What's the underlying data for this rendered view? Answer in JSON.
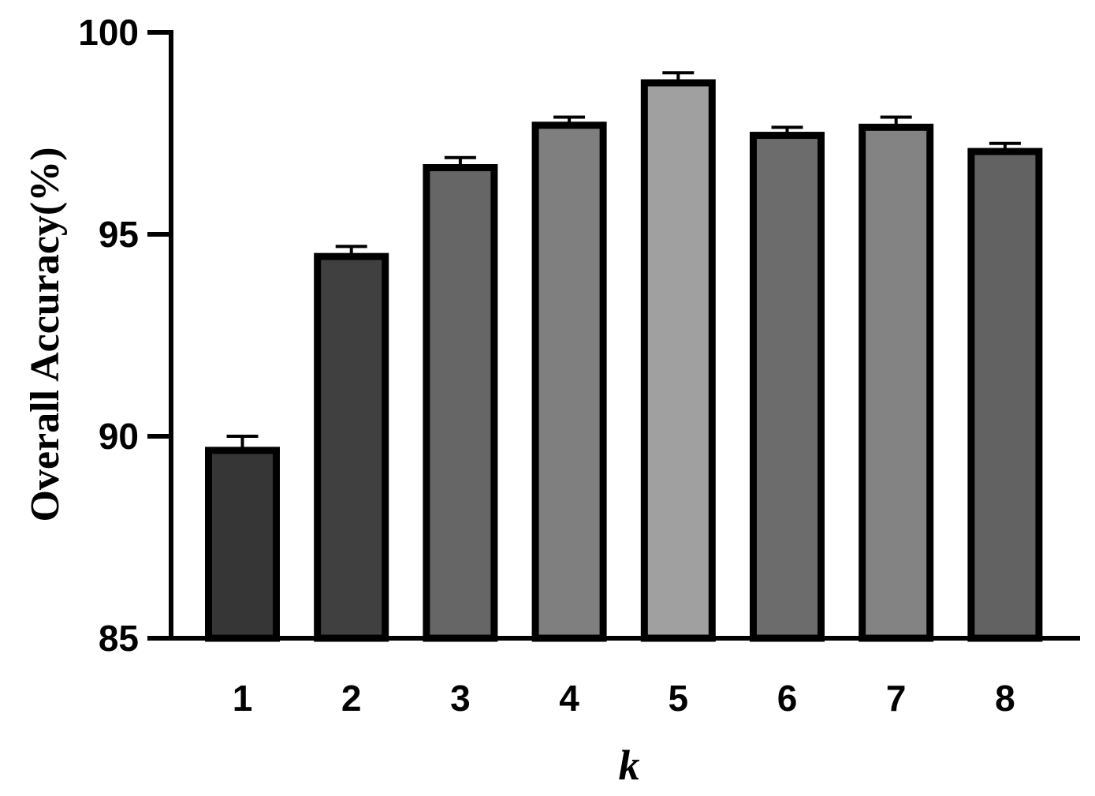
{
  "chart_data": {
    "type": "bar",
    "categories": [
      "1",
      "2",
      "3",
      "4",
      "5",
      "6",
      "7",
      "8"
    ],
    "values": [
      89.65,
      94.45,
      96.65,
      97.7,
      98.75,
      97.45,
      97.65,
      97.05
    ],
    "errors": [
      0.35,
      0.25,
      0.25,
      0.2,
      0.25,
      0.2,
      0.25,
      0.2
    ],
    "bar_colors": [
      "#363636",
      "#404040",
      "#666666",
      "#7f7f7f",
      "#a0a0a0",
      "#6c6c6c",
      "#838383",
      "#626262"
    ],
    "title": "",
    "xlabel": "k",
    "ylabel": "Overall Accuracy(%)",
    "ylim": [
      85,
      100
    ],
    "yticks": [
      "85",
      "90",
      "95",
      "100"
    ],
    "grid": false,
    "legend": "none"
  }
}
